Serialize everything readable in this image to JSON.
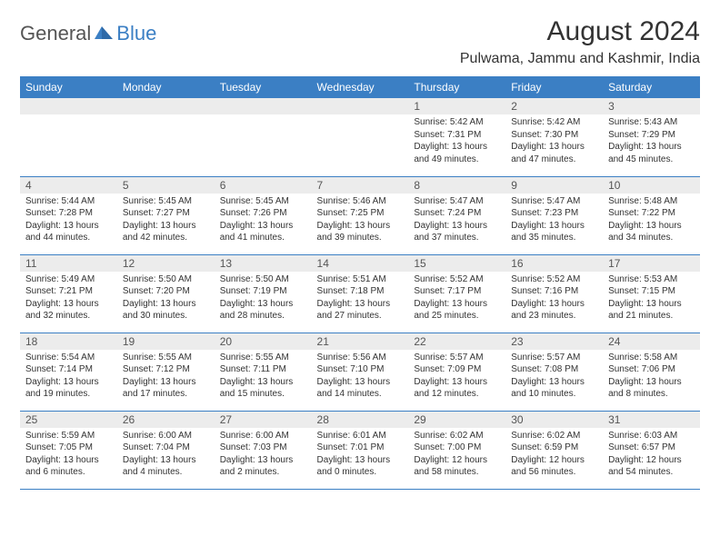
{
  "logo": {
    "text1": "General",
    "text2": "Blue"
  },
  "title": "August 2024",
  "subtitle": "Pulwama, Jammu and Kashmir, India",
  "colors": {
    "header_bg": "#3b7fc4",
    "header_fg": "#ffffff",
    "daynum_bg": "#ececec",
    "text": "#333333"
  },
  "weekdays": [
    "Sunday",
    "Monday",
    "Tuesday",
    "Wednesday",
    "Thursday",
    "Friday",
    "Saturday"
  ],
  "first_weekday_index": 4,
  "days": [
    {
      "n": 1,
      "sunrise": "5:42 AM",
      "sunset": "7:31 PM",
      "daylight": "13 hours and 49 minutes."
    },
    {
      "n": 2,
      "sunrise": "5:42 AM",
      "sunset": "7:30 PM",
      "daylight": "13 hours and 47 minutes."
    },
    {
      "n": 3,
      "sunrise": "5:43 AM",
      "sunset": "7:29 PM",
      "daylight": "13 hours and 45 minutes."
    },
    {
      "n": 4,
      "sunrise": "5:44 AM",
      "sunset": "7:28 PM",
      "daylight": "13 hours and 44 minutes."
    },
    {
      "n": 5,
      "sunrise": "5:45 AM",
      "sunset": "7:27 PM",
      "daylight": "13 hours and 42 minutes."
    },
    {
      "n": 6,
      "sunrise": "5:45 AM",
      "sunset": "7:26 PM",
      "daylight": "13 hours and 41 minutes."
    },
    {
      "n": 7,
      "sunrise": "5:46 AM",
      "sunset": "7:25 PM",
      "daylight": "13 hours and 39 minutes."
    },
    {
      "n": 8,
      "sunrise": "5:47 AM",
      "sunset": "7:24 PM",
      "daylight": "13 hours and 37 minutes."
    },
    {
      "n": 9,
      "sunrise": "5:47 AM",
      "sunset": "7:23 PM",
      "daylight": "13 hours and 35 minutes."
    },
    {
      "n": 10,
      "sunrise": "5:48 AM",
      "sunset": "7:22 PM",
      "daylight": "13 hours and 34 minutes."
    },
    {
      "n": 11,
      "sunrise": "5:49 AM",
      "sunset": "7:21 PM",
      "daylight": "13 hours and 32 minutes."
    },
    {
      "n": 12,
      "sunrise": "5:50 AM",
      "sunset": "7:20 PM",
      "daylight": "13 hours and 30 minutes."
    },
    {
      "n": 13,
      "sunrise": "5:50 AM",
      "sunset": "7:19 PM",
      "daylight": "13 hours and 28 minutes."
    },
    {
      "n": 14,
      "sunrise": "5:51 AM",
      "sunset": "7:18 PM",
      "daylight": "13 hours and 27 minutes."
    },
    {
      "n": 15,
      "sunrise": "5:52 AM",
      "sunset": "7:17 PM",
      "daylight": "13 hours and 25 minutes."
    },
    {
      "n": 16,
      "sunrise": "5:52 AM",
      "sunset": "7:16 PM",
      "daylight": "13 hours and 23 minutes."
    },
    {
      "n": 17,
      "sunrise": "5:53 AM",
      "sunset": "7:15 PM",
      "daylight": "13 hours and 21 minutes."
    },
    {
      "n": 18,
      "sunrise": "5:54 AM",
      "sunset": "7:14 PM",
      "daylight": "13 hours and 19 minutes."
    },
    {
      "n": 19,
      "sunrise": "5:55 AM",
      "sunset": "7:12 PM",
      "daylight": "13 hours and 17 minutes."
    },
    {
      "n": 20,
      "sunrise": "5:55 AM",
      "sunset": "7:11 PM",
      "daylight": "13 hours and 15 minutes."
    },
    {
      "n": 21,
      "sunrise": "5:56 AM",
      "sunset": "7:10 PM",
      "daylight": "13 hours and 14 minutes."
    },
    {
      "n": 22,
      "sunrise": "5:57 AM",
      "sunset": "7:09 PM",
      "daylight": "13 hours and 12 minutes."
    },
    {
      "n": 23,
      "sunrise": "5:57 AM",
      "sunset": "7:08 PM",
      "daylight": "13 hours and 10 minutes."
    },
    {
      "n": 24,
      "sunrise": "5:58 AM",
      "sunset": "7:06 PM",
      "daylight": "13 hours and 8 minutes."
    },
    {
      "n": 25,
      "sunrise": "5:59 AM",
      "sunset": "7:05 PM",
      "daylight": "13 hours and 6 minutes."
    },
    {
      "n": 26,
      "sunrise": "6:00 AM",
      "sunset": "7:04 PM",
      "daylight": "13 hours and 4 minutes."
    },
    {
      "n": 27,
      "sunrise": "6:00 AM",
      "sunset": "7:03 PM",
      "daylight": "13 hours and 2 minutes."
    },
    {
      "n": 28,
      "sunrise": "6:01 AM",
      "sunset": "7:01 PM",
      "daylight": "13 hours and 0 minutes."
    },
    {
      "n": 29,
      "sunrise": "6:02 AM",
      "sunset": "7:00 PM",
      "daylight": "12 hours and 58 minutes."
    },
    {
      "n": 30,
      "sunrise": "6:02 AM",
      "sunset": "6:59 PM",
      "daylight": "12 hours and 56 minutes."
    },
    {
      "n": 31,
      "sunrise": "6:03 AM",
      "sunset": "6:57 PM",
      "daylight": "12 hours and 54 minutes."
    }
  ]
}
